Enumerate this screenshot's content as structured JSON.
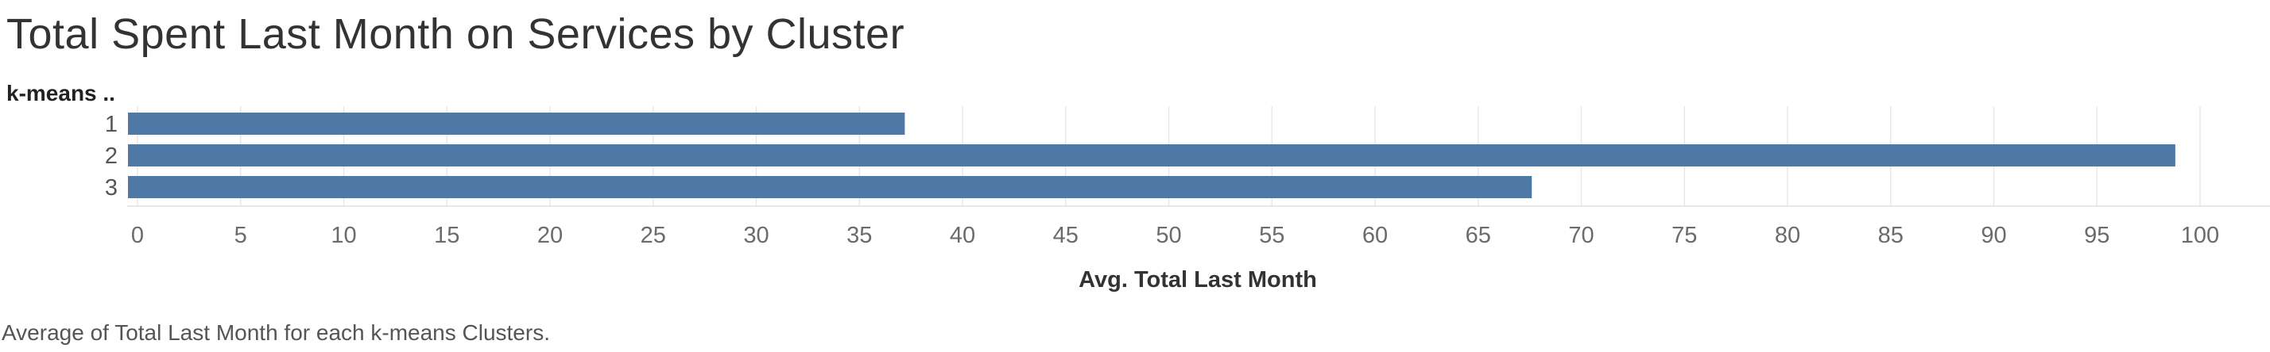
{
  "header": {
    "title": "Total Spent Last Month on Services by Cluster",
    "row_header": "k-means .."
  },
  "footer": {
    "caption": "Average of Total Last Month for each k-means Clusters."
  },
  "colors": {
    "bar": "#4e79a7",
    "grid": "#e8e8e8"
  },
  "chart_data": {
    "type": "bar",
    "orientation": "horizontal",
    "categories": [
      "1",
      "2",
      "3"
    ],
    "values": [
      37.2,
      98.8,
      67.6
    ],
    "xlabel": "Avg. Total Last Month",
    "ylabel": "k-means ..",
    "xlim": [
      0,
      104
    ],
    "xticks": [
      0,
      5,
      10,
      15,
      20,
      25,
      30,
      35,
      40,
      45,
      50,
      55,
      60,
      65,
      70,
      75,
      80,
      85,
      90,
      95,
      100
    ],
    "grid": true,
    "legend": "none"
  }
}
